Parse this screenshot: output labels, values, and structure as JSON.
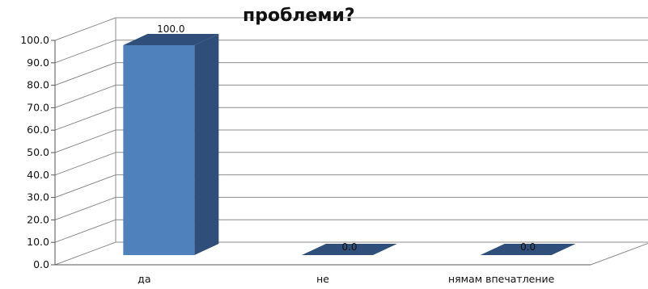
{
  "chart_data": {
    "type": "bar",
    "title": "проблеми?",
    "categories": [
      "да",
      "не",
      "нямам впечатление"
    ],
    "values": [
      100.0,
      0.0,
      0.0
    ],
    "data_labels": [
      "100.0",
      "0.0",
      "0.0"
    ],
    "ylim": [
      0,
      100
    ],
    "yticks": [
      "0.0",
      "10.0",
      "20.0",
      "30.0",
      "40.0",
      "50.0",
      "60.0",
      "70.0",
      "80.0",
      "90.0",
      "100.0"
    ],
    "xlabel": "",
    "ylabel": "",
    "grid": true,
    "legend": false,
    "style": "3d-column",
    "colors": {
      "bar_front": "#4F81BD",
      "bar_side": "#2F4F7A",
      "bar_top": "#2F4F7A",
      "grid": "#8c8c8c"
    }
  }
}
